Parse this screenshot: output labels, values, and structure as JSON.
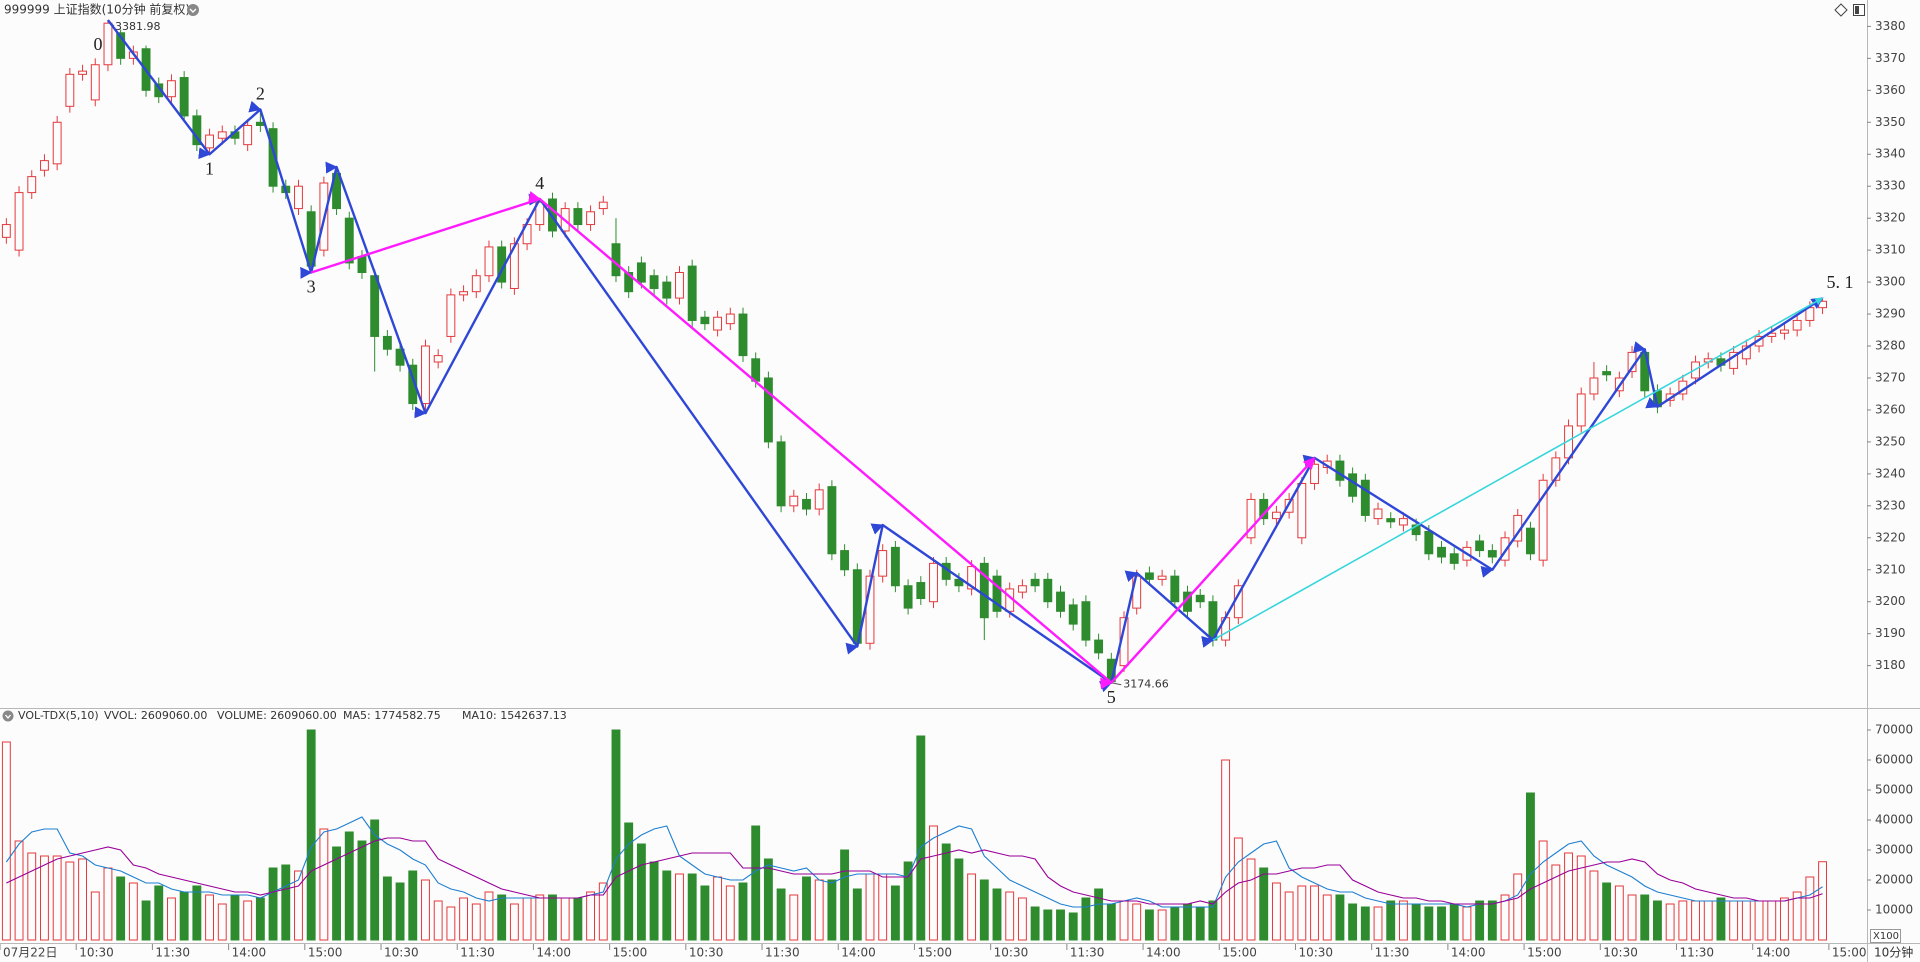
{
  "chart_data": {
    "type": "candlestick",
    "title": "999999 上证指数(10分钟 前复权)",
    "period": "10分钟",
    "xlim": [
      -0.5,
      146.5
    ],
    "ylim": [
      3168,
      3382
    ],
    "yticks": [
      3180,
      3190,
      3200,
      3210,
      3220,
      3230,
      3240,
      3250,
      3260,
      3270,
      3280,
      3290,
      3300,
      3310,
      3320,
      3330,
      3340,
      3350,
      3360,
      3370,
      3380
    ],
    "xticks": [
      {
        "value": 0,
        "label": "07月22日"
      },
      {
        "value": 6,
        "label": "10:30"
      },
      {
        "value": 12,
        "label": "11:30"
      },
      {
        "value": 18,
        "label": "14:00"
      },
      {
        "value": 24,
        "label": "15:00"
      },
      {
        "value": 30,
        "label": "10:30"
      },
      {
        "value": 36,
        "label": "11:30"
      },
      {
        "value": 42,
        "label": "14:00"
      },
      {
        "value": 48,
        "label": "15:00"
      },
      {
        "value": 54,
        "label": "10:30"
      },
      {
        "value": 60,
        "label": "11:30"
      },
      {
        "value": 66,
        "label": "14:00"
      },
      {
        "value": 72,
        "label": "15:00"
      },
      {
        "value": 78,
        "label": "10:30"
      },
      {
        "value": 84,
        "label": "11:30"
      },
      {
        "value": 90,
        "label": "14:00"
      },
      {
        "value": 96,
        "label": "15:00"
      },
      {
        "value": 102,
        "label": "10:30"
      },
      {
        "value": 108,
        "label": "11:30"
      },
      {
        "value": 114,
        "label": "14:00"
      },
      {
        "value": 120,
        "label": "15:00"
      },
      {
        "value": 126,
        "label": "10:30"
      },
      {
        "value": 132,
        "label": "11:30"
      },
      {
        "value": 138,
        "label": "14:00"
      },
      {
        "value": 144,
        "label": "15:00"
      }
    ],
    "up_color": "#e4393c",
    "down_color": "#2e8b2e",
    "open": [
      3314,
      3310,
      3328,
      3335,
      3337,
      3355,
      3365,
      3357,
      3368,
      3378,
      3370,
      3373,
      3362,
      3358,
      3364,
      3352,
      3342,
      3345,
      3347,
      3343,
      3350,
      3348,
      3330,
      3323,
      3322,
      3310,
      3334,
      3320,
      3308,
      3302,
      3283,
      3279,
      3274,
      3262,
      3275,
      3283,
      3296,
      3297,
      3302,
      3311,
      3298,
      3312,
      3318,
      3326,
      3316,
      3323,
      3318,
      3323,
      3312,
      3303,
      3306,
      3302,
      3300,
      3295,
      3305,
      3289,
      3285,
      3287,
      3290,
      3276,
      3270,
      3250,
      3230,
      3232,
      3229,
      3236,
      3216,
      3210,
      3187,
      3208,
      3217,
      3205,
      3206,
      3200,
      3212,
      3207,
      3204,
      3212,
      3208,
      3197,
      3203,
      3207,
      3207,
      3203,
      3199,
      3200,
      3188,
      3182,
      3180,
      3198,
      3209,
      3207,
      3208,
      3203,
      3202,
      3200,
      3188,
      3195,
      3220,
      3232,
      3226,
      3228,
      3220,
      3237,
      3242,
      3244,
      3240,
      3238,
      3226,
      3226,
      3224,
      3224,
      3222,
      3217,
      3215,
      3213,
      3219,
      3216,
      3213,
      3219,
      3223,
      3213,
      3238,
      3245,
      3255,
      3265,
      3272,
      3266,
      3272,
      3278,
      3266,
      3263,
      3265,
      3270,
      3275,
      3276,
      3273,
      3276,
      3280,
      3283,
      3284,
      3285,
      3288,
      3292
    ],
    "high": [
      3320,
      3330,
      3335,
      3340,
      3352,
      3367,
      3368,
      3370,
      3381.98,
      3379,
      3374,
      3374,
      3364,
      3365,
      3366,
      3354,
      3348,
      3349,
      3349,
      3351,
      3354,
      3350,
      3332,
      3332,
      3324,
      3333,
      3336,
      3322,
      3310,
      3304,
      3285,
      3281,
      3276,
      3282,
      3279,
      3298,
      3299,
      3304,
      3313,
      3313,
      3314,
      3320,
      3326,
      3328,
      3325,
      3325,
      3324,
      3327,
      3320,
      3305,
      3308,
      3304,
      3302,
      3305,
      3307,
      3291,
      3291,
      3292,
      3292,
      3278,
      3272,
      3252,
      3235,
      3234,
      3237,
      3238,
      3218,
      3212,
      3210,
      3218,
      3219,
      3207,
      3208,
      3214,
      3214,
      3209,
      3213,
      3214,
      3210,
      3206,
      3207,
      3209,
      3209,
      3205,
      3201,
      3202,
      3190,
      3184,
      3197,
      3210,
      3211,
      3210,
      3210,
      3205,
      3204,
      3202,
      3197,
      3207,
      3234,
      3234,
      3230,
      3234,
      3239,
      3245,
      3246,
      3246,
      3242,
      3240,
      3231,
      3228,
      3228,
      3226,
      3224,
      3219,
      3217,
      3219,
      3221,
      3218,
      3222,
      3229,
      3225,
      3240,
      3247,
      3257,
      3267,
      3275,
      3274,
      3272,
      3280,
      3279,
      3268,
      3267,
      3271,
      3277,
      3278,
      3278,
      3280,
      3282,
      3285,
      3286,
      3287,
      3290,
      3294,
      3295
    ],
    "low": [
      3312,
      3308,
      3326,
      3333,
      3335,
      3353,
      3363,
      3355,
      3366,
      3368,
      3368,
      3358,
      3356,
      3356,
      3350,
      3341,
      3340,
      3343,
      3343,
      3341,
      3347,
      3328,
      3326,
      3321,
      3303,
      3308,
      3321,
      3304,
      3301,
      3272,
      3277,
      3272,
      3260,
      3259,
      3273,
      3281,
      3294,
      3295,
      3300,
      3298,
      3296,
      3310,
      3316,
      3314,
      3314,
      3316,
      3316,
      3321,
      3300,
      3295,
      3298,
      3296,
      3293,
      3293,
      3286,
      3285,
      3283,
      3285,
      3275,
      3267,
      3248,
      3228,
      3228,
      3227,
      3227,
      3213,
      3208,
      3186,
      3185,
      3206,
      3203,
      3196,
      3199,
      3198,
      3205,
      3203,
      3202,
      3188,
      3195,
      3195,
      3201,
      3203,
      3198,
      3195,
      3191,
      3186,
      3182,
      3174.66,
      3178,
      3196,
      3205,
      3205,
      3198,
      3195,
      3198,
      3186,
      3186,
      3193,
      3218,
      3224,
      3224,
      3226,
      3218,
      3235,
      3240,
      3236,
      3231,
      3225,
      3224,
      3223,
      3222,
      3219,
      3213,
      3212,
      3210,
      3211,
      3214,
      3212,
      3211,
      3217,
      3213,
      3211,
      3236,
      3243,
      3253,
      3263,
      3269,
      3264,
      3270,
      3264,
      3259,
      3261,
      3263,
      3268,
      3273,
      3272,
      3271,
      3274,
      3278,
      3281,
      3282,
      3283,
      3286,
      3290
    ],
    "close": [
      3318,
      3328,
      3333,
      3338,
      3350,
      3365,
      3366,
      3368,
      3381,
      3370,
      3372,
      3360,
      3358,
      3363,
      3352,
      3343,
      3346,
      3347,
      3345,
      3349,
      3349,
      3330,
      3328,
      3330,
      3305,
      3331,
      3323,
      3306,
      3303,
      3283,
      3279,
      3274,
      3262,
      3280,
      3277,
      3296,
      3297,
      3302,
      3311,
      3300,
      3312,
      3318,
      3325,
      3316,
      3323,
      3318,
      3322,
      3325,
      3302,
      3297,
      3300,
      3298,
      3295,
      3303,
      3288,
      3287,
      3289,
      3290,
      3277,
      3269,
      3250,
      3230,
      3233,
      3229,
      3235,
      3215,
      3210,
      3187,
      3208,
      3216,
      3205,
      3198,
      3201,
      3212,
      3207,
      3205,
      3211,
      3195,
      3197,
      3204,
      3205,
      3205,
      3200,
      3197,
      3193,
      3188,
      3184,
      3175,
      3195,
      3208,
      3207,
      3208,
      3200,
      3197,
      3200,
      3188,
      3195,
      3205,
      3232,
      3226,
      3228,
      3232,
      3237,
      3243,
      3244,
      3238,
      3233,
      3227,
      3229,
      3225,
      3226,
      3221,
      3215,
      3214,
      3212,
      3217,
      3216,
      3214,
      3220,
      3227,
      3215,
      3238,
      3245,
      3255,
      3265,
      3270,
      3271,
      3270,
      3278,
      3266,
      3261,
      3265,
      3269,
      3275,
      3276,
      3274,
      3278,
      3280,
      3283,
      3284,
      3285,
      3288,
      3292,
      3294
    ],
    "waves": [
      {
        "color": "#2f47d6",
        "points": [
          {
            "x": 8,
            "y": 3381.98,
            "label": "0"
          },
          {
            "x": 16,
            "y": 3340,
            "label": "1"
          },
          {
            "x": 20,
            "y": 3354,
            "label": "2"
          },
          {
            "x": 24,
            "y": 3303,
            "label": "3"
          },
          {
            "x": 26,
            "y": 3336
          },
          {
            "x": 33,
            "y": 3259
          },
          {
            "x": 42,
            "y": 3326,
            "label": "4"
          },
          {
            "x": 67,
            "y": 3186
          },
          {
            "x": 69,
            "y": 3224
          },
          {
            "x": 87,
            "y": 3174.66,
            "label": "5"
          },
          {
            "x": 89,
            "y": 3209
          },
          {
            "x": 95,
            "y": 3188
          },
          {
            "x": 103,
            "y": 3245
          },
          {
            "x": 117,
            "y": 3210
          },
          {
            "x": 129,
            "y": 3279
          },
          {
            "x": 130,
            "y": 3261
          },
          {
            "x": 143,
            "y": 3295,
            "label": "5. 1"
          }
        ]
      },
      {
        "color": "#ff1aff",
        "points": [
          {
            "x": 24,
            "y": 3303
          },
          {
            "x": 42,
            "y": 3326
          },
          {
            "x": 87,
            "y": 3174.66
          },
          {
            "x": 103,
            "y": 3245
          }
        ]
      },
      {
        "color": "#36d6dc",
        "points": [
          {
            "x": 95,
            "y": 3188
          },
          {
            "x": 143,
            "y": 3295
          }
        ]
      }
    ],
    "volume": {
      "type": "bar",
      "multiplier": "X100",
      "ylim": [
        0,
        73000
      ],
      "yticks": [
        10000,
        20000,
        30000,
        40000,
        50000,
        60000,
        70000
      ],
      "legend": [
        "VOL-TDX(5,10)",
        "VVOL: 2609060.00",
        "VOLUME: 2609060.00",
        "MA5: 1774582.75",
        "MA10: 1542637.13"
      ],
      "legend_colors": [
        "#333333",
        "#333333",
        "#1e7fd0",
        "#1e7fd0",
        "#990099"
      ],
      "values": [
        66000,
        33000,
        29000,
        28000,
        28000,
        26000,
        27000,
        16000,
        24000,
        21000,
        19000,
        13000,
        18000,
        14000,
        16000,
        18000,
        15000,
        12000,
        15000,
        13000,
        14000,
        24000,
        25000,
        23000,
        70000,
        37000,
        31000,
        36000,
        33000,
        40000,
        21000,
        19000,
        23000,
        20000,
        13000,
        11000,
        14000,
        12000,
        16000,
        15000,
        12000,
        14000,
        15000,
        15000,
        14000,
        14000,
        16000,
        19000,
        70000,
        39000,
        32000,
        26000,
        23000,
        22000,
        22000,
        18000,
        21000,
        18000,
        19000,
        38000,
        27000,
        17000,
        15000,
        21000,
        20000,
        20000,
        30000,
        17000,
        22000,
        22000,
        18000,
        26000,
        68000,
        38000,
        32000,
        27000,
        22000,
        20000,
        17000,
        16000,
        14000,
        11000,
        10000,
        10000,
        9000,
        14000,
        17000,
        12000,
        13000,
        12000,
        10000,
        10000,
        11000,
        12000,
        11000,
        13000,
        60000,
        34000,
        27000,
        24000,
        19000,
        16000,
        18000,
        18000,
        15000,
        15000,
        12000,
        11000,
        11000,
        13000,
        13000,
        12000,
        11000,
        11000,
        12000,
        11000,
        13000,
        13000,
        15000,
        22000,
        49000,
        33000,
        25000,
        29000,
        28000,
        23000,
        19000,
        18000,
        15000,
        15000,
        13000,
        12000,
        13000,
        13000,
        13000,
        14000,
        13000,
        13000,
        13000,
        13000,
        14000,
        16000,
        21000,
        26090.6
      ],
      "series": [
        {
          "color": "#1e7fd0",
          "values": [
            26000,
            32000,
            36000,
            37000,
            37000,
            29000,
            28000,
            25000,
            24000,
            23000,
            21000,
            19000,
            19000,
            17000,
            16000,
            16000,
            16000,
            15000,
            15000,
            15000,
            14000,
            16000,
            18000,
            20000,
            31000,
            36000,
            37000,
            39000,
            41000,
            35000,
            32000,
            30000,
            27000,
            25000,
            19000,
            17000,
            16000,
            14000,
            13000,
            14000,
            14000,
            14000,
            14000,
            14000,
            14000,
            14000,
            15000,
            16000,
            27000,
            32000,
            35000,
            37000,
            38000,
            28000,
            25000,
            22000,
            21000,
            20000,
            20000,
            23000,
            25000,
            24000,
            23000,
            24000,
            20000,
            19000,
            21000,
            22000,
            22000,
            22000,
            22000,
            21000,
            31000,
            34000,
            36000,
            38000,
            37000,
            28000,
            24000,
            20000,
            18000,
            16000,
            14000,
            12000,
            11000,
            11000,
            12000,
            12000,
            13000,
            14000,
            13000,
            11000,
            11000,
            11000,
            11000,
            11000,
            21000,
            26000,
            29000,
            32000,
            33000,
            24000,
            21000,
            19000,
            17000,
            16000,
            16000,
            14000,
            13000,
            12000,
            12000,
            12000,
            12000,
            12000,
            12000,
            11000,
            12000,
            12000,
            13000,
            15000,
            22000,
            26000,
            29000,
            32000,
            33000,
            28000,
            25000,
            23000,
            21000,
            18000,
            16000,
            15000,
            14000,
            13000,
            13000,
            13000,
            13000,
            13000,
            13000,
            13000,
            13000,
            14000,
            15000,
            17745.8
          ]
        },
        {
          "color": "#990099",
          "values": [
            19000,
            21000,
            23000,
            25000,
            27000,
            28000,
            29000,
            30000,
            31000,
            30000,
            25000,
            24000,
            22000,
            21000,
            20000,
            19000,
            18000,
            17000,
            16000,
            16000,
            15000,
            16000,
            17000,
            18000,
            23000,
            25000,
            27000,
            29000,
            31000,
            33000,
            34000,
            34000,
            33000,
            33000,
            27000,
            25000,
            23000,
            21000,
            19000,
            17000,
            16000,
            15000,
            14000,
            14000,
            14000,
            14000,
            15000,
            15000,
            21000,
            23000,
            25000,
            26000,
            27000,
            28000,
            29000,
            29000,
            29000,
            29000,
            24000,
            24000,
            24000,
            23000,
            22000,
            22000,
            22000,
            22000,
            23000,
            23000,
            23000,
            21000,
            21000,
            21000,
            27000,
            28000,
            29000,
            30000,
            29000,
            30000,
            29000,
            28000,
            28000,
            27000,
            21000,
            18000,
            16000,
            15000,
            14000,
            13000,
            13000,
            13000,
            12000,
            12000,
            12000,
            12000,
            13000,
            12000,
            16000,
            19000,
            20000,
            22000,
            22000,
            23000,
            24000,
            24000,
            25000,
            25000,
            20000,
            18000,
            16000,
            15000,
            14000,
            14000,
            13000,
            13000,
            12000,
            12000,
            12000,
            12000,
            13000,
            14000,
            17000,
            19000,
            21000,
            23000,
            24000,
            25000,
            26000,
            26000,
            27000,
            26000,
            22000,
            20000,
            19000,
            17000,
            16000,
            15000,
            14000,
            14000,
            13000,
            13000,
            13000,
            14000,
            14000,
            15426.4
          ]
        }
      ]
    }
  }
}
